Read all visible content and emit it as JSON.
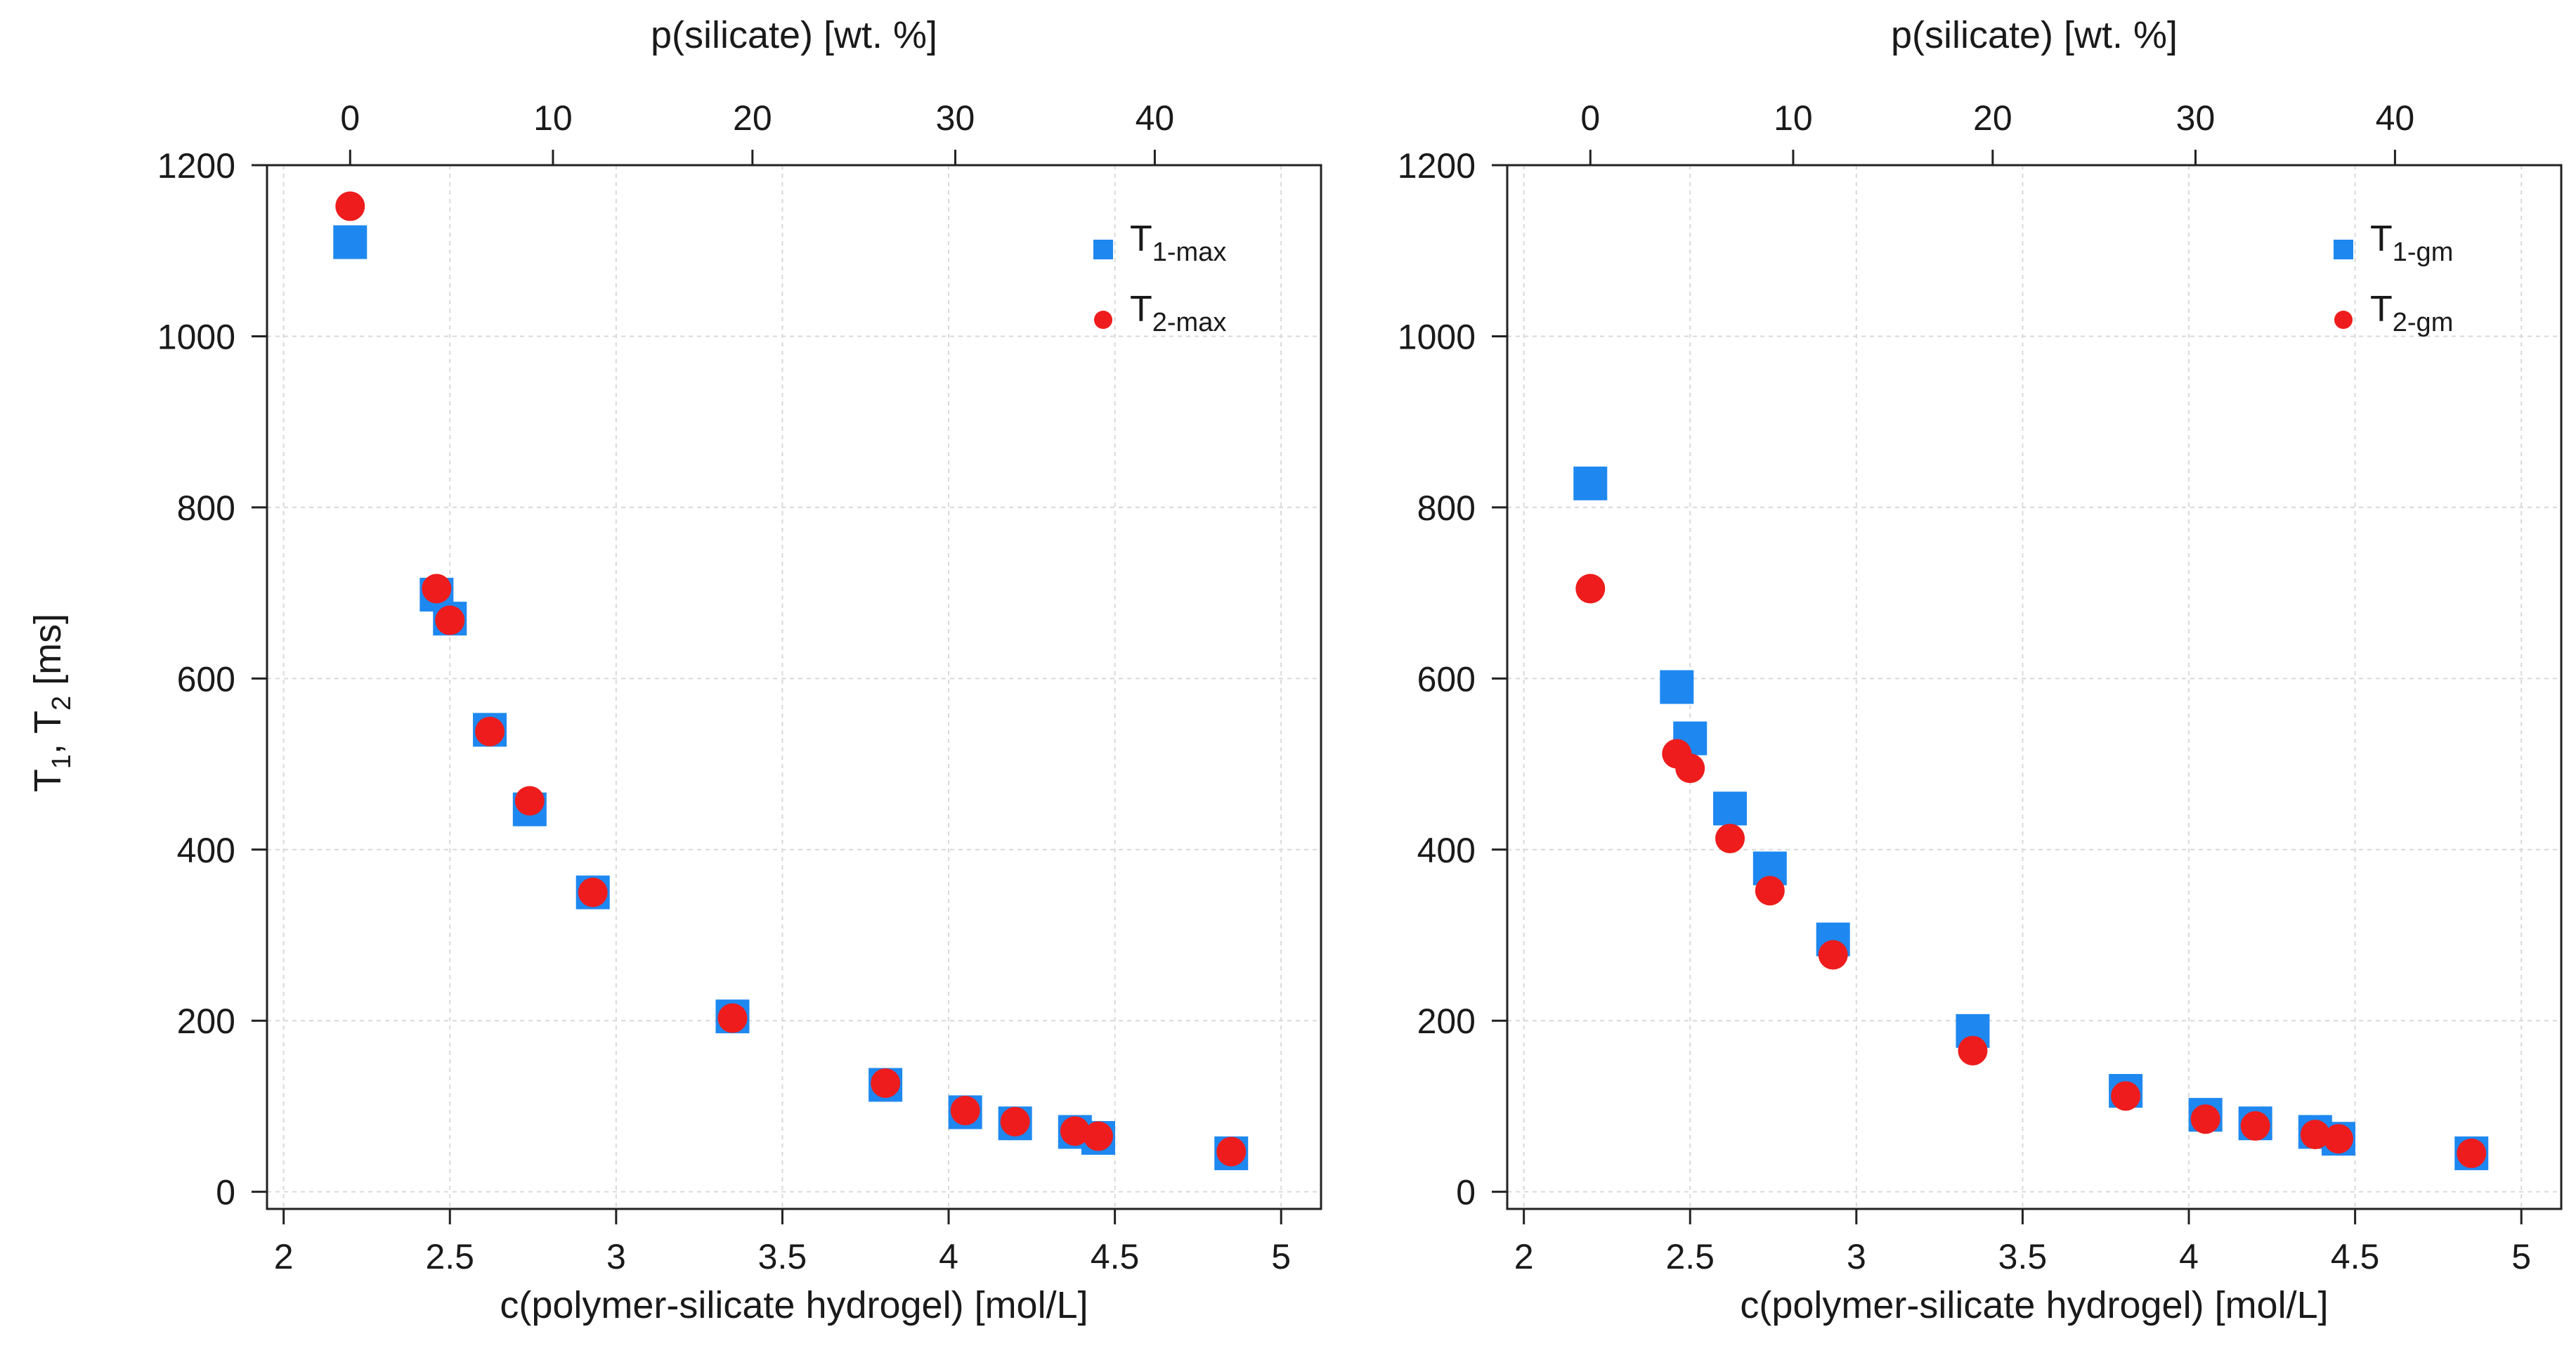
{
  "figure": {
    "y_axis_label": {
      "main": "T",
      "sub1": "1",
      "sep": ", T",
      "sub2": "2",
      "unit": " [ms]"
    }
  },
  "chart_data": [
    {
      "type": "scatter",
      "title": "",
      "xlabel": "c(polymer-silicate hydrogel) [mol/L]",
      "top_xlabel": "p(silicate) [wt. %]",
      "xlim": [
        1.95,
        5.12
      ],
      "ylim": [
        -20,
        1200
      ],
      "xticks": [
        2,
        2.5,
        3,
        3.5,
        4,
        4.5,
        5
      ],
      "xtick_labels": [
        "2",
        "2.5",
        "3",
        "3.5",
        "4",
        "4.5",
        "5"
      ],
      "yticks": [
        0,
        200,
        400,
        600,
        800,
        1000,
        1200
      ],
      "ytick_labels": [
        "0",
        "200",
        "400",
        "600",
        "800",
        "1000",
        "1200"
      ],
      "top_ticks": [
        2.2,
        2.81,
        3.41,
        4.02,
        4.62
      ],
      "top_tick_labels": [
        "0",
        "10",
        "20",
        "30",
        "40"
      ],
      "grid": true,
      "legend_position": "top-right",
      "series": [
        {
          "name": "T",
          "name_sub": "1-max",
          "marker": "square",
          "color": "#1e88f0",
          "x": [
            2.2,
            2.46,
            2.5,
            2.62,
            2.74,
            2.93,
            3.35,
            3.81,
            4.05,
            4.2,
            4.38,
            4.45,
            4.85
          ],
          "y": [
            1110,
            698,
            670,
            540,
            447,
            350,
            205,
            125,
            93,
            80,
            70,
            63,
            45
          ]
        },
        {
          "name": "T",
          "name_sub": "2-max",
          "marker": "circle",
          "color": "#ee1c1c",
          "x": [
            2.2,
            2.46,
            2.5,
            2.62,
            2.74,
            2.93,
            3.35,
            3.81,
            4.05,
            4.2,
            4.38,
            4.45,
            4.85
          ],
          "y": [
            1152,
            705,
            668,
            538,
            457,
            350,
            203,
            127,
            95,
            82,
            71,
            65,
            47
          ]
        }
      ]
    },
    {
      "type": "scatter",
      "title": "",
      "xlabel": "c(polymer-silicate hydrogel) [mol/L]",
      "top_xlabel": "p(silicate) [wt. %]",
      "xlim": [
        1.95,
        5.12
      ],
      "ylim": [
        -20,
        1200
      ],
      "xticks": [
        2,
        2.5,
        3,
        3.5,
        4,
        4.5,
        5
      ],
      "xtick_labels": [
        "2",
        "2.5",
        "3",
        "3.5",
        "4",
        "4.5",
        "5"
      ],
      "yticks": [
        0,
        200,
        400,
        600,
        800,
        1000,
        1200
      ],
      "ytick_labels": [
        "0",
        "200",
        "400",
        "600",
        "800",
        "1000",
        "1200"
      ],
      "top_ticks": [
        2.2,
        2.81,
        3.41,
        4.02,
        4.62
      ],
      "top_tick_labels": [
        "0",
        "10",
        "20",
        "30",
        "40"
      ],
      "grid": true,
      "legend_position": "top-right",
      "series": [
        {
          "name": "T",
          "name_sub": "1-gm",
          "marker": "square",
          "color": "#1e88f0",
          "x": [
            2.2,
            2.46,
            2.5,
            2.62,
            2.74,
            2.93,
            3.35,
            3.81,
            4.05,
            4.2,
            4.38,
            4.45,
            4.85
          ],
          "y": [
            828,
            590,
            530,
            448,
            378,
            295,
            188,
            118,
            90,
            80,
            70,
            62,
            45
          ]
        },
        {
          "name": "T",
          "name_sub": "2-gm",
          "marker": "circle",
          "color": "#ee1c1c",
          "x": [
            2.2,
            2.46,
            2.5,
            2.62,
            2.74,
            2.93,
            3.35,
            3.81,
            4.05,
            4.2,
            4.38,
            4.45,
            4.85
          ],
          "y": [
            705,
            512,
            495,
            413,
            352,
            277,
            165,
            112,
            85,
            77,
            67,
            62,
            45
          ]
        }
      ]
    }
  ]
}
